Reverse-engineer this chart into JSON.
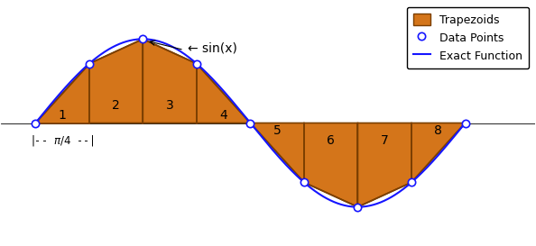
{
  "n_trapezoids": 8,
  "x_start": 0,
  "x_end": 6.283185307179586,
  "trap_fill_color": "#D4751A",
  "trap_edge_color": "#7B3F00",
  "trap_linewidth": 1.2,
  "curve_color": "#1515FF",
  "curve_linewidth": 1.5,
  "point_color": "#1515FF",
  "point_facecolor": "white",
  "point_markersize": 6,
  "point_linewidth": 1.2,
  "label_numbers": [
    "1",
    "2",
    "3",
    "4",
    "5",
    "6",
    "7",
    "8"
  ],
  "label_fontsize": 10,
  "sin_label": "← sin(x)",
  "sin_label_fontsize": 10,
  "legend_labels": [
    "Trapezoids",
    "Data Points",
    "Exact Function"
  ],
  "figsize": [
    5.94,
    2.73
  ],
  "dpi": 100,
  "background_color": "white",
  "xlim": [
    -0.5,
    7.3
  ],
  "ylim": [
    -1.45,
    1.45
  ]
}
